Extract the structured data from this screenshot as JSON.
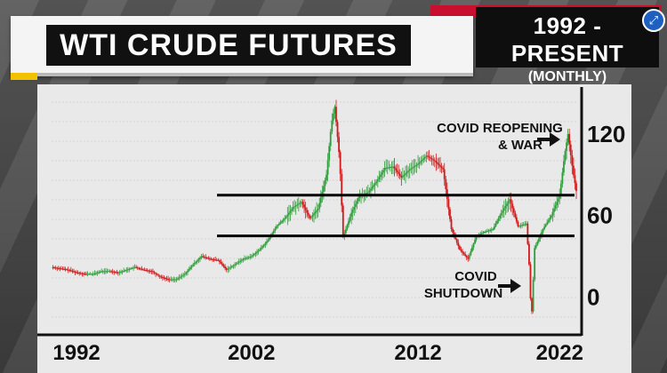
{
  "header": {
    "title": "WTI CRUDE FUTURES",
    "range": "1992 - PRESENT",
    "interval": "(MONTHLY)"
  },
  "controls": {
    "expand_icon": "expand-arrows-icon"
  },
  "colors": {
    "up": "#2e9e3a",
    "down": "#d11a1a",
    "level": "#000000",
    "accent_red": "#c8102e",
    "accent_yellow": "#f2c200"
  },
  "chart_data": {
    "type": "line",
    "x_tick_labels": [
      "1992",
      "2002",
      "2012",
      "2022"
    ],
    "y_tick_labels": [
      "0",
      "60",
      "120"
    ],
    "xlim": [
      1991.5,
      2023
    ],
    "ylim": [
      -20,
      150
    ],
    "levels": [
      {
        "value": 75
      },
      {
        "value": 45
      }
    ],
    "annotations": [
      {
        "text_lines": [
          "COVID REOPENING",
          "& WAR"
        ],
        "x": 2020.5,
        "y": 128,
        "arrow": "right"
      },
      {
        "text_lines": [
          "COVID",
          "SHUTDOWN"
        ],
        "x": 2019.8,
        "y": 0,
        "arrow": "right"
      }
    ],
    "series": [
      {
        "x": [
          1991.5,
          1992,
          1992.5,
          1993,
          1993.5,
          1994,
          1994.5,
          1995,
          1995.5,
          1996,
          1996.5,
          1997,
          1997.5,
          1998,
          1998.5,
          1999,
          1999.5,
          2000,
          2000.5,
          2001,
          2001.5,
          2002,
          2002.5,
          2003,
          2003.5,
          2004,
          2004.5,
          2005,
          2005.5,
          2006,
          2006.5,
          2007,
          2007.5,
          2008,
          2008.3,
          2008.5,
          2008.8,
          2009,
          2009.5,
          2010,
          2010.5,
          2011,
          2011.5,
          2012,
          2012.5,
          2013,
          2013.5,
          2014,
          2014.5,
          2015,
          2015.5,
          2016,
          2016.5,
          2017,
          2017.5,
          2018,
          2018.5,
          2019,
          2019.5,
          2020,
          2020.2,
          2020.3,
          2020.5,
          2021,
          2021.5,
          2022,
          2022.3,
          2022.5,
          2022.8,
          2023
        ],
        "y": [
          22,
          21,
          20,
          18,
          17,
          17,
          19,
          19,
          18,
          20,
          22,
          20,
          19,
          15,
          13,
          13,
          17,
          24,
          30,
          28,
          27,
          20,
          24,
          28,
          30,
          35,
          42,
          52,
          58,
          66,
          70,
          58,
          65,
          90,
          128,
          140,
          100,
          44,
          62,
          75,
          77,
          85,
          95,
          96,
          88,
          94,
          98,
          104,
          100,
          94,
          50,
          35,
          28,
          45,
          48,
          50,
          62,
          72,
          52,
          54,
          18,
          -20,
          36,
          50,
          60,
          75,
          105,
          120,
          92,
          78
        ]
      }
    ]
  }
}
